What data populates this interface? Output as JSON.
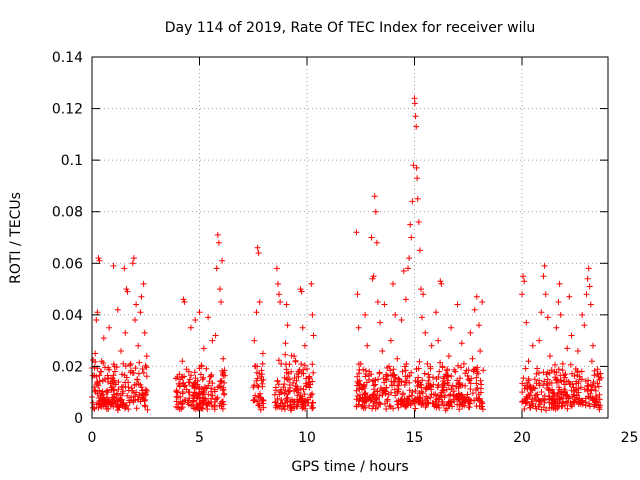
{
  "chart_data": {
    "type": "scatter",
    "title": "Day 114 of 2019, Rate Of TEC Index for receiver wilu",
    "xlabel": "GPS time / hours",
    "ylabel": "ROTI / TECUs",
    "xlim": [
      0,
      24
    ],
    "ylim": [
      0,
      0.14
    ],
    "xticks": [
      0,
      5,
      10,
      15,
      20,
      25
    ],
    "xtick_labels": [
      "0",
      "5",
      "10",
      "15",
      "20",
      "25"
    ],
    "yticks": [
      0,
      0.02,
      0.04,
      0.06,
      0.08,
      0.1,
      0.12,
      0.14
    ],
    "ytick_labels": [
      "0",
      "0.02",
      "0.04",
      "0.06",
      "0.08",
      "0.1",
      "0.12",
      "0.14"
    ],
    "grid": true,
    "marker": "plus",
    "color": "#ff0000",
    "series": [
      {
        "name": "ROTI",
        "points": [
          [
            0.05,
            0.004
          ],
          [
            0.1,
            0.012
          ],
          [
            0.15,
            0.025
          ],
          [
            0.2,
            0.038
          ],
          [
            0.25,
            0.041
          ],
          [
            0.3,
            0.062
          ],
          [
            0.35,
            0.061
          ],
          [
            0.4,
            0.018
          ],
          [
            0.45,
            0.022
          ],
          [
            0.5,
            0.009
          ],
          [
            0.55,
            0.031
          ],
          [
            0.6,
            0.015
          ],
          [
            0.7,
            0.008
          ],
          [
            0.8,
            0.035
          ],
          [
            0.9,
            0.011
          ],
          [
            1.0,
            0.059
          ],
          [
            1.05,
            0.02
          ],
          [
            1.1,
            0.013
          ],
          [
            1.2,
            0.042
          ],
          [
            1.3,
            0.007
          ],
          [
            1.35,
            0.026
          ],
          [
            1.4,
            0.017
          ],
          [
            1.5,
            0.058
          ],
          [
            1.55,
            0.033
          ],
          [
            1.6,
            0.05
          ],
          [
            1.65,
            0.049
          ],
          [
            1.7,
            0.012
          ],
          [
            1.8,
            0.021
          ],
          [
            1.9,
            0.06
          ],
          [
            1.95,
            0.062
          ],
          [
            2.0,
            0.038
          ],
          [
            2.05,
            0.044
          ],
          [
            2.1,
            0.015
          ],
          [
            2.15,
            0.028
          ],
          [
            2.2,
            0.009
          ],
          [
            2.25,
            0.041
          ],
          [
            2.3,
            0.047
          ],
          [
            2.35,
            0.019
          ],
          [
            2.4,
            0.052
          ],
          [
            2.45,
            0.033
          ],
          [
            2.5,
            0.011
          ],
          [
            2.55,
            0.024
          ],
          [
            0.2,
            0.016
          ],
          [
            0.5,
            0.007
          ],
          [
            0.75,
            0.014
          ],
          [
            1.15,
            0.009
          ],
          [
            1.45,
            0.021
          ],
          [
            1.75,
            0.006
          ],
          [
            2.05,
            0.013
          ],
          [
            2.35,
            0.008
          ],
          [
            4.0,
            0.008
          ],
          [
            4.1,
            0.015
          ],
          [
            4.2,
            0.022
          ],
          [
            4.25,
            0.046
          ],
          [
            4.3,
            0.045
          ],
          [
            4.4,
            0.011
          ],
          [
            4.5,
            0.018
          ],
          [
            4.6,
            0.035
          ],
          [
            4.7,
            0.009
          ],
          [
            4.8,
            0.038
          ],
          [
            4.9,
            0.013
          ],
          [
            5.0,
            0.041
          ],
          [
            5.1,
            0.02
          ],
          [
            5.2,
            0.027
          ],
          [
            5.3,
            0.007
          ],
          [
            5.4,
            0.039
          ],
          [
            5.5,
            0.016
          ],
          [
            5.6,
            0.03
          ],
          [
            5.7,
            0.011
          ],
          [
            5.75,
            0.032
          ],
          [
            5.8,
            0.058
          ],
          [
            5.85,
            0.071
          ],
          [
            5.9,
            0.068
          ],
          [
            5.95,
            0.05
          ],
          [
            6.0,
            0.045
          ],
          [
            6.05,
            0.061
          ],
          [
            6.1,
            0.023
          ],
          [
            6.15,
            0.009
          ],
          [
            4.45,
            0.006
          ],
          [
            5.25,
            0.012
          ],
          [
            7.5,
            0.012
          ],
          [
            7.55,
            0.03
          ],
          [
            7.6,
            0.02
          ],
          [
            7.65,
            0.041
          ],
          [
            7.7,
            0.066
          ],
          [
            7.75,
            0.064
          ],
          [
            7.8,
            0.045
          ],
          [
            7.85,
            0.008
          ],
          [
            7.9,
            0.017
          ],
          [
            7.95,
            0.025
          ],
          [
            8.5,
            0.009
          ],
          [
            8.6,
            0.058
          ],
          [
            8.65,
            0.052
          ],
          [
            8.7,
            0.048
          ],
          [
            8.75,
            0.045
          ],
          [
            8.8,
            0.021
          ],
          [
            8.9,
            0.012
          ],
          [
            9.0,
            0.029
          ],
          [
            9.05,
            0.044
          ],
          [
            9.1,
            0.036
          ],
          [
            9.2,
            0.015
          ],
          [
            9.3,
            0.007
          ],
          [
            9.4,
            0.024
          ],
          [
            9.5,
            0.011
          ],
          [
            9.6,
            0.018
          ],
          [
            9.7,
            0.05
          ],
          [
            9.75,
            0.049
          ],
          [
            9.8,
            0.035
          ],
          [
            9.9,
            0.028
          ],
          [
            10.0,
            0.019
          ],
          [
            10.1,
            0.013
          ],
          [
            10.2,
            0.052
          ],
          [
            10.25,
            0.04
          ],
          [
            10.3,
            0.032
          ],
          [
            8.55,
            0.004
          ],
          [
            9.25,
            0.003
          ],
          [
            9.85,
            0.006
          ],
          [
            10.15,
            0.008
          ],
          [
            12.3,
            0.072
          ],
          [
            12.35,
            0.048
          ],
          [
            12.4,
            0.035
          ],
          [
            12.5,
            0.021
          ],
          [
            12.6,
            0.012
          ],
          [
            12.7,
            0.04
          ],
          [
            12.8,
            0.028
          ],
          [
            12.9,
            0.018
          ],
          [
            13.0,
            0.07
          ],
          [
            13.05,
            0.054
          ],
          [
            13.1,
            0.055
          ],
          [
            13.15,
            0.086
          ],
          [
            13.2,
            0.08
          ],
          [
            13.25,
            0.068
          ],
          [
            13.3,
            0.045
          ],
          [
            13.4,
            0.037
          ],
          [
            13.5,
            0.026
          ],
          [
            13.6,
            0.044
          ],
          [
            13.7,
            0.015
          ],
          [
            13.8,
            0.009
          ],
          [
            13.9,
            0.03
          ],
          [
            14.0,
            0.052
          ],
          [
            14.1,
            0.04
          ],
          [
            14.2,
            0.023
          ],
          [
            14.3,
            0.014
          ],
          [
            14.4,
            0.038
          ],
          [
            14.5,
            0.057
          ],
          [
            14.6,
            0.046
          ],
          [
            14.7,
            0.058
          ],
          [
            14.75,
            0.062
          ],
          [
            14.8,
            0.075
          ],
          [
            14.85,
            0.07
          ],
          [
            14.9,
            0.084
          ],
          [
            14.95,
            0.098
          ],
          [
            15.0,
            0.124
          ],
          [
            15.02,
            0.122
          ],
          [
            15.05,
            0.117
          ],
          [
            15.08,
            0.113
          ],
          [
            15.1,
            0.097
          ],
          [
            15.12,
            0.093
          ],
          [
            15.15,
            0.085
          ],
          [
            15.2,
            0.076
          ],
          [
            15.25,
            0.065
          ],
          [
            15.3,
            0.05
          ],
          [
            15.35,
            0.039
          ],
          [
            15.4,
            0.048
          ],
          [
            15.5,
            0.033
          ],
          [
            15.6,
            0.021
          ],
          [
            15.7,
            0.012
          ],
          [
            15.8,
            0.028
          ],
          [
            15.9,
            0.009
          ],
          [
            16.0,
            0.041
          ],
          [
            16.1,
            0.03
          ],
          [
            16.2,
            0.053
          ],
          [
            16.25,
            0.052
          ],
          [
            16.3,
            0.02
          ],
          [
            16.4,
            0.016
          ],
          [
            16.5,
            0.011
          ],
          [
            16.6,
            0.024
          ],
          [
            16.7,
            0.035
          ],
          [
            16.8,
            0.009
          ],
          [
            16.9,
            0.018
          ],
          [
            17.0,
            0.044
          ],
          [
            17.1,
            0.013
          ],
          [
            17.2,
            0.029
          ],
          [
            17.3,
            0.021
          ],
          [
            17.4,
            0.008
          ],
          [
            17.5,
            0.015
          ],
          [
            17.6,
            0.033
          ],
          [
            17.7,
            0.023
          ],
          [
            17.8,
            0.042
          ],
          [
            17.9,
            0.047
          ],
          [
            18.0,
            0.036
          ],
          [
            18.05,
            0.026
          ],
          [
            18.1,
            0.013
          ],
          [
            18.15,
            0.045
          ],
          [
            13.35,
            0.006
          ],
          [
            14.25,
            0.004
          ],
          [
            15.55,
            0.005
          ],
          [
            16.45,
            0.003
          ],
          [
            17.25,
            0.006
          ],
          [
            17.95,
            0.007
          ],
          [
            20.0,
            0.048
          ],
          [
            20.05,
            0.055
          ],
          [
            20.1,
            0.053
          ],
          [
            20.2,
            0.037
          ],
          [
            20.3,
            0.022
          ],
          [
            20.4,
            0.012
          ],
          [
            20.5,
            0.028
          ],
          [
            20.6,
            0.015
          ],
          [
            20.7,
            0.009
          ],
          [
            20.8,
            0.03
          ],
          [
            20.9,
            0.041
          ],
          [
            21.0,
            0.055
          ],
          [
            21.05,
            0.059
          ],
          [
            21.1,
            0.048
          ],
          [
            21.2,
            0.039
          ],
          [
            21.3,
            0.024
          ],
          [
            21.4,
            0.011
          ],
          [
            21.5,
            0.018
          ],
          [
            21.6,
            0.035
          ],
          [
            21.7,
            0.045
          ],
          [
            21.75,
            0.052
          ],
          [
            21.8,
            0.04
          ],
          [
            21.9,
            0.021
          ],
          [
            22.0,
            0.013
          ],
          [
            22.1,
            0.027
          ],
          [
            22.2,
            0.047
          ],
          [
            22.3,
            0.032
          ],
          [
            22.4,
            0.009
          ],
          [
            22.5,
            0.019
          ],
          [
            22.6,
            0.026
          ],
          [
            22.7,
            0.015
          ],
          [
            22.8,
            0.04
          ],
          [
            22.9,
            0.036
          ],
          [
            23.0,
            0.048
          ],
          [
            23.05,
            0.054
          ],
          [
            23.1,
            0.058
          ],
          [
            23.15,
            0.051
          ],
          [
            23.2,
            0.044
          ],
          [
            23.25,
            0.022
          ],
          [
            23.3,
            0.028
          ],
          [
            23.4,
            0.012
          ],
          [
            23.5,
            0.017
          ],
          [
            23.6,
            0.009
          ],
          [
            20.35,
            0.005
          ],
          [
            21.45,
            0.004
          ],
          [
            22.45,
            0.006
          ],
          [
            23.45,
            0.005
          ]
        ],
        "baseline_bands": [
          {
            "x": [
              0.0,
              2.6
            ],
            "y": [
              0.003,
              0.019
            ]
          },
          {
            "x": [
              3.9,
              6.2
            ],
            "y": [
              0.003,
              0.017
            ]
          },
          {
            "x": [
              7.5,
              8.0
            ],
            "y": [
              0.003,
              0.02
            ]
          },
          {
            "x": [
              8.5,
              10.3
            ],
            "y": [
              0.003,
              0.021
            ]
          },
          {
            "x": [
              12.3,
              18.2
            ],
            "y": [
              0.003,
              0.018
            ]
          },
          {
            "x": [
              20.0,
              23.7
            ],
            "y": [
              0.003,
              0.017
            ]
          }
        ]
      }
    ]
  }
}
